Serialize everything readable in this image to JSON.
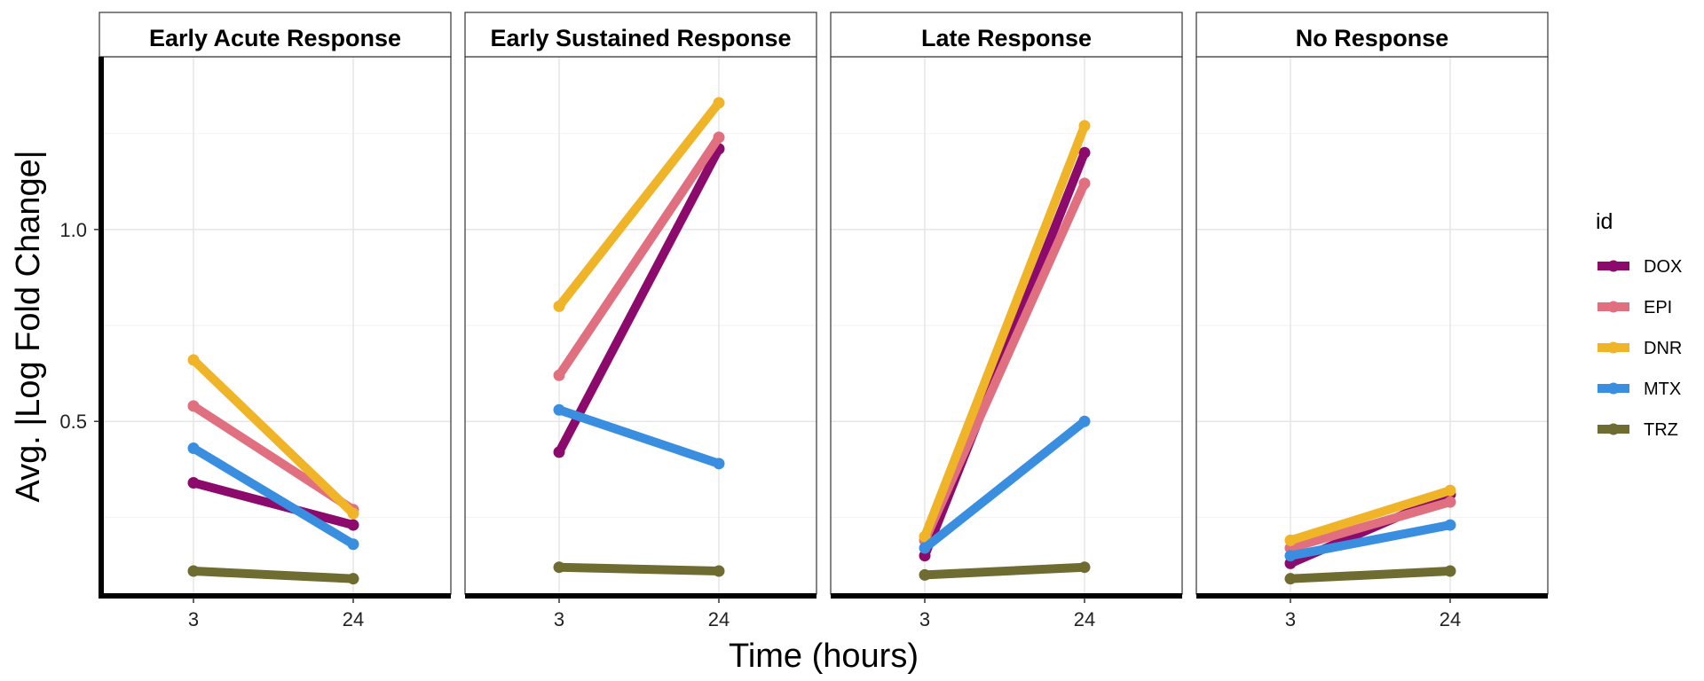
{
  "chart_data": {
    "type": "line",
    "facets": [
      "Early Acute Response",
      "Early Sustained Response",
      "Late Response",
      "No Response"
    ],
    "x": [
      "3",
      "24"
    ],
    "xlabel": "Time (hours)",
    "ylabel": "Avg. |Log Fold Change|",
    "y_ticks": [
      0.5,
      1.0
    ],
    "y_tick_labels": [
      "0.5",
      "1.0"
    ],
    "ylim": [
      0.05,
      1.45
    ],
    "grid": true,
    "legend_position": "right",
    "legend_title": "id",
    "series": [
      {
        "name": "DOX",
        "color": "#8B0A6B",
        "values": [
          [
            0.34,
            0.23
          ],
          [
            0.42,
            1.21
          ],
          [
            0.15,
            1.2
          ],
          [
            0.13,
            0.31
          ]
        ]
      },
      {
        "name": "EPI",
        "color": "#E0707F",
        "values": [
          [
            0.54,
            0.27
          ],
          [
            0.62,
            1.24
          ],
          [
            0.19,
            1.12
          ],
          [
            0.17,
            0.29
          ]
        ]
      },
      {
        "name": "DNR",
        "color": "#F0B429",
        "values": [
          [
            0.66,
            0.26
          ],
          [
            0.8,
            1.33
          ],
          [
            0.2,
            1.27
          ],
          [
            0.19,
            0.32
          ]
        ]
      },
      {
        "name": "MTX",
        "color": "#3A8EE0",
        "values": [
          [
            0.43,
            0.18
          ],
          [
            0.53,
            0.39
          ],
          [
            0.17,
            0.5
          ],
          [
            0.15,
            0.23
          ]
        ]
      },
      {
        "name": "TRZ",
        "color": "#6E6C30",
        "values": [
          [
            0.11,
            0.09
          ],
          [
            0.12,
            0.11
          ],
          [
            0.1,
            0.12
          ],
          [
            0.09,
            0.11
          ]
        ]
      }
    ]
  }
}
